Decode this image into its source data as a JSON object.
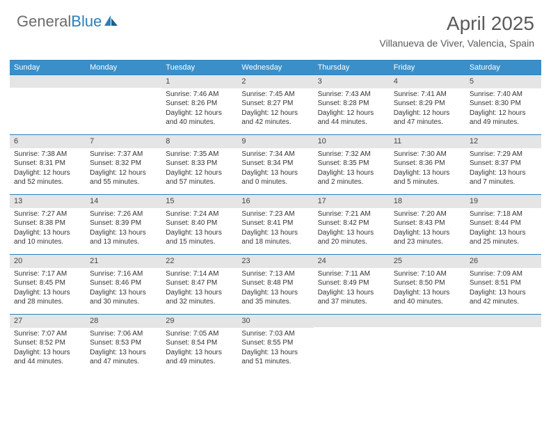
{
  "colors": {
    "accent": "#3a8fc9",
    "rule": "#2a7fba",
    "logo_gray": "#6b6b6b",
    "text": "#333333",
    "daybar": "#e5e5e5",
    "bg": "#ffffff"
  },
  "logo": {
    "part1": "General",
    "part2": "Blue"
  },
  "title": "April 2025",
  "location": "Villanueva de Viver, Valencia, Spain",
  "weekdays": [
    "Sunday",
    "Monday",
    "Tuesday",
    "Wednesday",
    "Thursday",
    "Friday",
    "Saturday"
  ],
  "weeks": [
    [
      null,
      null,
      {
        "n": "1",
        "sr": "7:46 AM",
        "ss": "8:26 PM",
        "dl": "12 hours and 40 minutes."
      },
      {
        "n": "2",
        "sr": "7:45 AM",
        "ss": "8:27 PM",
        "dl": "12 hours and 42 minutes."
      },
      {
        "n": "3",
        "sr": "7:43 AM",
        "ss": "8:28 PM",
        "dl": "12 hours and 44 minutes."
      },
      {
        "n": "4",
        "sr": "7:41 AM",
        "ss": "8:29 PM",
        "dl": "12 hours and 47 minutes."
      },
      {
        "n": "5",
        "sr": "7:40 AM",
        "ss": "8:30 PM",
        "dl": "12 hours and 49 minutes."
      }
    ],
    [
      {
        "n": "6",
        "sr": "7:38 AM",
        "ss": "8:31 PM",
        "dl": "12 hours and 52 minutes."
      },
      {
        "n": "7",
        "sr": "7:37 AM",
        "ss": "8:32 PM",
        "dl": "12 hours and 55 minutes."
      },
      {
        "n": "8",
        "sr": "7:35 AM",
        "ss": "8:33 PM",
        "dl": "12 hours and 57 minutes."
      },
      {
        "n": "9",
        "sr": "7:34 AM",
        "ss": "8:34 PM",
        "dl": "13 hours and 0 minutes."
      },
      {
        "n": "10",
        "sr": "7:32 AM",
        "ss": "8:35 PM",
        "dl": "13 hours and 2 minutes."
      },
      {
        "n": "11",
        "sr": "7:30 AM",
        "ss": "8:36 PM",
        "dl": "13 hours and 5 minutes."
      },
      {
        "n": "12",
        "sr": "7:29 AM",
        "ss": "8:37 PM",
        "dl": "13 hours and 7 minutes."
      }
    ],
    [
      {
        "n": "13",
        "sr": "7:27 AM",
        "ss": "8:38 PM",
        "dl": "13 hours and 10 minutes."
      },
      {
        "n": "14",
        "sr": "7:26 AM",
        "ss": "8:39 PM",
        "dl": "13 hours and 13 minutes."
      },
      {
        "n": "15",
        "sr": "7:24 AM",
        "ss": "8:40 PM",
        "dl": "13 hours and 15 minutes."
      },
      {
        "n": "16",
        "sr": "7:23 AM",
        "ss": "8:41 PM",
        "dl": "13 hours and 18 minutes."
      },
      {
        "n": "17",
        "sr": "7:21 AM",
        "ss": "8:42 PM",
        "dl": "13 hours and 20 minutes."
      },
      {
        "n": "18",
        "sr": "7:20 AM",
        "ss": "8:43 PM",
        "dl": "13 hours and 23 minutes."
      },
      {
        "n": "19",
        "sr": "7:18 AM",
        "ss": "8:44 PM",
        "dl": "13 hours and 25 minutes."
      }
    ],
    [
      {
        "n": "20",
        "sr": "7:17 AM",
        "ss": "8:45 PM",
        "dl": "13 hours and 28 minutes."
      },
      {
        "n": "21",
        "sr": "7:16 AM",
        "ss": "8:46 PM",
        "dl": "13 hours and 30 minutes."
      },
      {
        "n": "22",
        "sr": "7:14 AM",
        "ss": "8:47 PM",
        "dl": "13 hours and 32 minutes."
      },
      {
        "n": "23",
        "sr": "7:13 AM",
        "ss": "8:48 PM",
        "dl": "13 hours and 35 minutes."
      },
      {
        "n": "24",
        "sr": "7:11 AM",
        "ss": "8:49 PM",
        "dl": "13 hours and 37 minutes."
      },
      {
        "n": "25",
        "sr": "7:10 AM",
        "ss": "8:50 PM",
        "dl": "13 hours and 40 minutes."
      },
      {
        "n": "26",
        "sr": "7:09 AM",
        "ss": "8:51 PM",
        "dl": "13 hours and 42 minutes."
      }
    ],
    [
      {
        "n": "27",
        "sr": "7:07 AM",
        "ss": "8:52 PM",
        "dl": "13 hours and 44 minutes."
      },
      {
        "n": "28",
        "sr": "7:06 AM",
        "ss": "8:53 PM",
        "dl": "13 hours and 47 minutes."
      },
      {
        "n": "29",
        "sr": "7:05 AM",
        "ss": "8:54 PM",
        "dl": "13 hours and 49 minutes."
      },
      {
        "n": "30",
        "sr": "7:03 AM",
        "ss": "8:55 PM",
        "dl": "13 hours and 51 minutes."
      },
      null,
      null,
      null
    ]
  ],
  "labels": {
    "sunrise": "Sunrise:",
    "sunset": "Sunset:",
    "daylight": "Daylight:"
  }
}
